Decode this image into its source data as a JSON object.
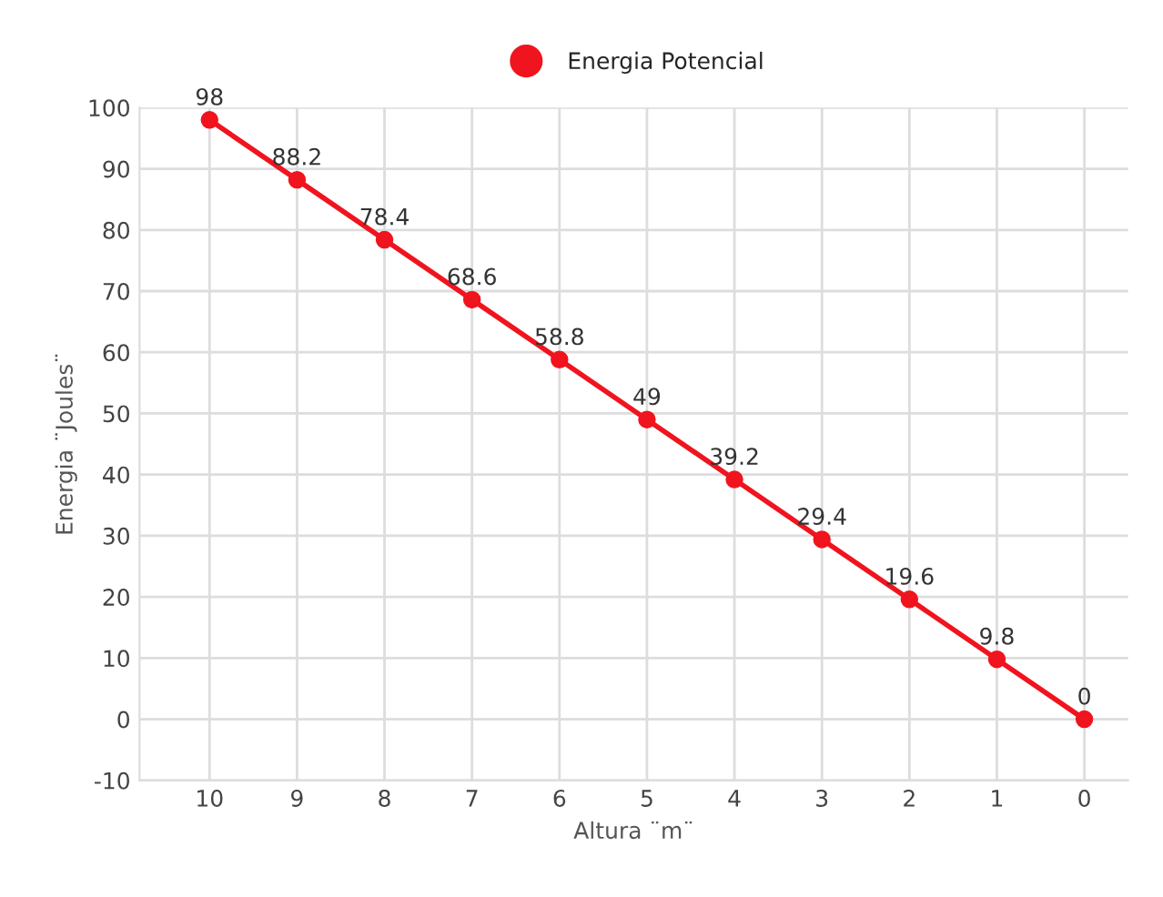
{
  "chart_data": {
    "type": "line",
    "xlabel": "Altura ¨m¨",
    "ylabel": "Energia ¨Joules¨",
    "categories": [
      "10",
      "9",
      "8",
      "7",
      "6",
      "5",
      "4",
      "3",
      "2",
      "1",
      "0"
    ],
    "series": [
      {
        "name": "Energia Potencial",
        "color": "#f0141e",
        "values": [
          98,
          88.2,
          78.4,
          68.6,
          58.8,
          49,
          39.2,
          29.4,
          19.6,
          9.8,
          0
        ]
      }
    ],
    "ylim": [
      -10,
      100
    ],
    "yticks": [
      -10,
      0,
      10,
      20,
      30,
      40,
      50,
      60,
      70,
      80,
      90,
      100
    ],
    "grid": true,
    "legend": "top",
    "marker": "circle",
    "line_style": "solid",
    "data_labels": true
  }
}
